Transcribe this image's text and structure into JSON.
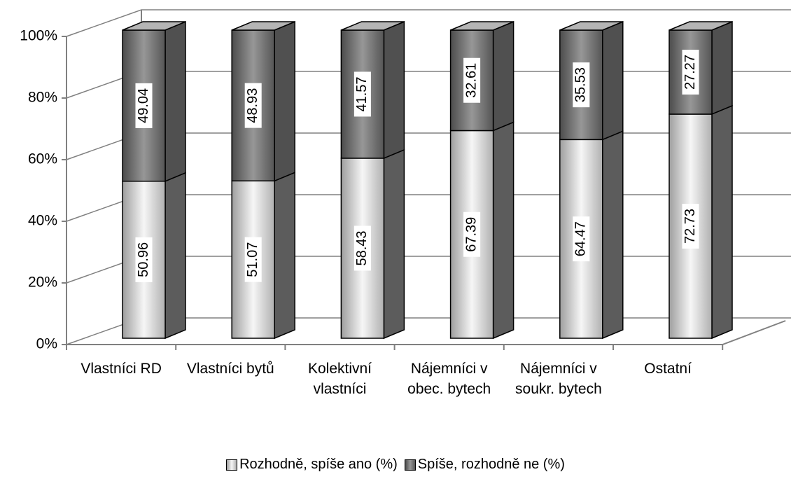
{
  "chart_data": {
    "type": "bar3d_stacked",
    "categories": [
      "Vlastníci RD",
      "Vlastníci bytů",
      "Kolektivní vlastníci",
      "Nájemníci v obec. bytech",
      "Nájemníci v soukr. bytech",
      "Ostatní"
    ],
    "series": [
      {
        "name": "Rozhodně, spíše ano (%)",
        "color": "#dcdcdc",
        "values": [
          50.96,
          51.07,
          58.43,
          67.39,
          64.47,
          72.73
        ]
      },
      {
        "name": "Spíše, rozhodně ne (%)",
        "color": "#6a6a6a",
        "values": [
          49.04,
          48.93,
          41.57,
          32.61,
          35.53,
          27.27
        ]
      }
    ],
    "ylim": [
      0,
      100
    ],
    "yticks": [
      {
        "value": 0,
        "label": "0%"
      },
      {
        "value": 20,
        "label": "20%"
      },
      {
        "value": 40,
        "label": "40%"
      },
      {
        "value": 60,
        "label": "60%"
      },
      {
        "value": 80,
        "label": "80%"
      },
      {
        "value": 100,
        "label": "100%"
      }
    ],
    "grid": true,
    "legend": "bottom"
  }
}
